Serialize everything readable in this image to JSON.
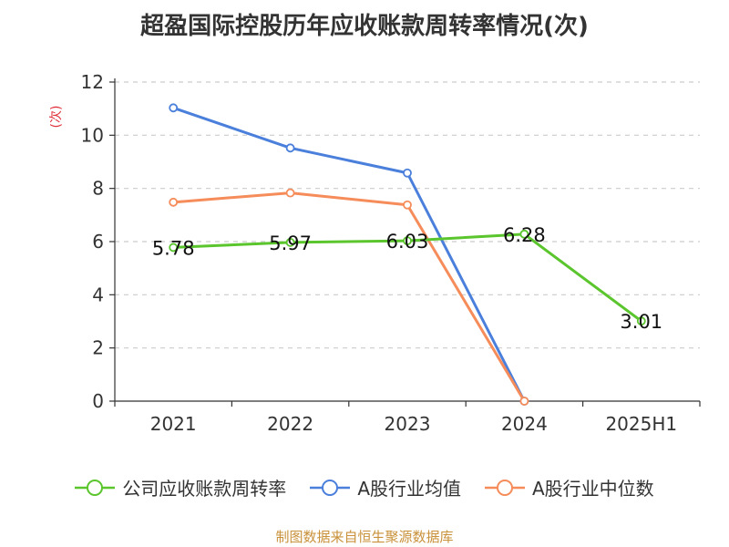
{
  "page_title": "超盈国际控股历年应收账款周转率情况(次)",
  "source": "制图数据来自恒生聚源数据库",
  "chart_data": {
    "type": "line",
    "title": "超盈国际控股历年应收账款周转率情况(次)",
    "ylabel": "(次)",
    "xlabel": "",
    "categories": [
      "2021",
      "2022",
      "2023",
      "2024",
      "2025H1"
    ],
    "ylim": [
      0,
      12
    ],
    "yticks": [
      0,
      2,
      4,
      6,
      8,
      10,
      12
    ],
    "grid": true,
    "legend_position": "bottom",
    "series": [
      {
        "name": "公司应收账款周转率",
        "color": "#5ac52c",
        "values": [
          5.78,
          5.97,
          6.03,
          6.28,
          3.01
        ],
        "labels": [
          "5.78",
          "5.97",
          "6.03",
          "6.28",
          "3.01"
        ],
        "show_labels": true
      },
      {
        "name": "A股行业均值",
        "color": "#4a7fdb",
        "values": [
          11.03,
          9.52,
          8.58,
          0,
          null
        ],
        "show_labels": false
      },
      {
        "name": "A股行业中位数",
        "color": "#f58c5a",
        "values": [
          7.48,
          7.83,
          7.38,
          0,
          null
        ],
        "show_labels": false
      }
    ]
  }
}
